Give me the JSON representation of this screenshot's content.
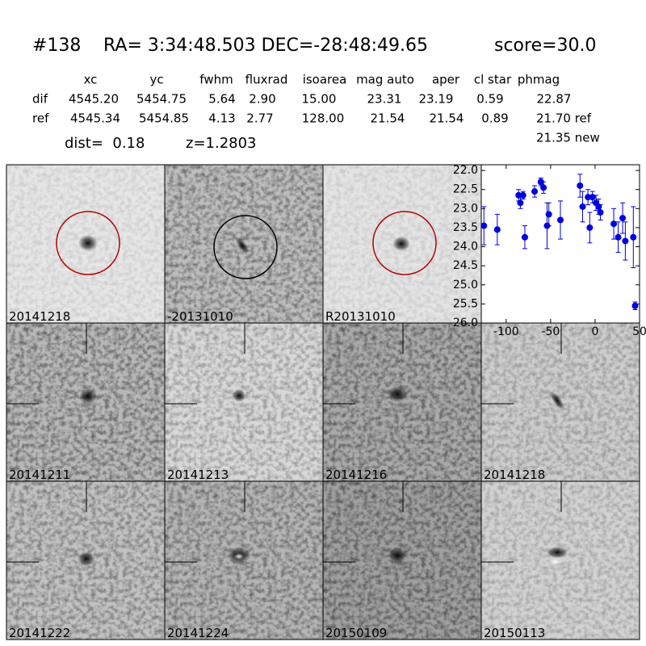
{
  "header": {
    "id": "#138",
    "coords": "RA= 3:34:48.503 DEC=-28:48:49.65",
    "score": "score=30.0"
  },
  "table": {
    "columns": [
      "xc",
      "yc",
      "fwhm",
      "fluxrad",
      "isoarea",
      "mag auto",
      "aper",
      "cl star",
      "phmag"
    ],
    "rows": [
      [
        "dif",
        "4545.20",
        "5454.75",
        "5.64",
        "2.90",
        "15.00",
        "23.31",
        "23.19",
        "0.59",
        "22.87"
      ],
      [
        "ref",
        "4545.34",
        "5454.85",
        "4.13",
        "2.77",
        "128.00",
        "21.54",
        "21.54",
        "0.89",
        "21.70 ref"
      ]
    ],
    "extra": "21.35 new"
  },
  "info": {
    "dist": "dist=  0.18",
    "z": "z=1.2803"
  },
  "panels": [
    {
      "label": "20141218"
    },
    {
      "label": "-20131010"
    },
    {
      "label": "R20131010"
    },
    {
      "label": "20141211"
    },
    {
      "label": "20141213"
    },
    {
      "label": "20141216"
    },
    {
      "label": "20141218",
      "color": "#ff0000"
    },
    {
      "label": "20141222"
    },
    {
      "label": "20141224"
    },
    {
      "label": "20150109"
    },
    {
      "label": "20150113"
    }
  ],
  "chart_data": {
    "type": "scatter",
    "color": "#0000dd",
    "x": [
      -125,
      -110,
      -86,
      -84,
      -81,
      -79,
      -68,
      -61,
      -58,
      -54,
      -52,
      -39,
      -17,
      -14,
      -8,
      -6,
      -3,
      1,
      4,
      6,
      21,
      26,
      31,
      34,
      43,
      45
    ],
    "values": [
      23.45,
      23.55,
      22.65,
      22.85,
      22.65,
      23.75,
      22.55,
      22.3,
      22.45,
      23.45,
      23.15,
      23.3,
      22.4,
      22.95,
      22.7,
      23.5,
      22.7,
      22.85,
      22.95,
      23.1,
      23.4,
      23.75,
      23.25,
      23.85,
      23.75,
      25.55
    ],
    "errors": [
      0.5,
      0.4,
      0.15,
      0.15,
      0.1,
      0.3,
      0.15,
      0.1,
      0.15,
      0.6,
      0.3,
      0.5,
      0.3,
      0.4,
      0.2,
      0.4,
      0.15,
      0.2,
      0.2,
      0.2,
      0.4,
      0.4,
      0.4,
      0.5,
      0.8,
      0.1
    ],
    "xlim": [
      -128,
      50
    ],
    "ylim": [
      21.85,
      26.0
    ],
    "inverted_y": true,
    "xticks": [
      -100,
      -50,
      0,
      50
    ],
    "yticks": [
      {
        "value": 22,
        "label": "22.0"
      },
      {
        "value": 22.5,
        "label": "22.5"
      },
      {
        "value": 23,
        "label": "23.0"
      },
      {
        "value": 23.5,
        "label": "23.5"
      },
      {
        "value": 24,
        "label": "24.0"
      },
      {
        "value": 24.5,
        "label": "24.5"
      },
      {
        "value": 25,
        "label": "25.0"
      },
      {
        "value": 25.5,
        "label": "25.5"
      },
      {
        "value": 26,
        "label": "26.0"
      }
    ]
  }
}
